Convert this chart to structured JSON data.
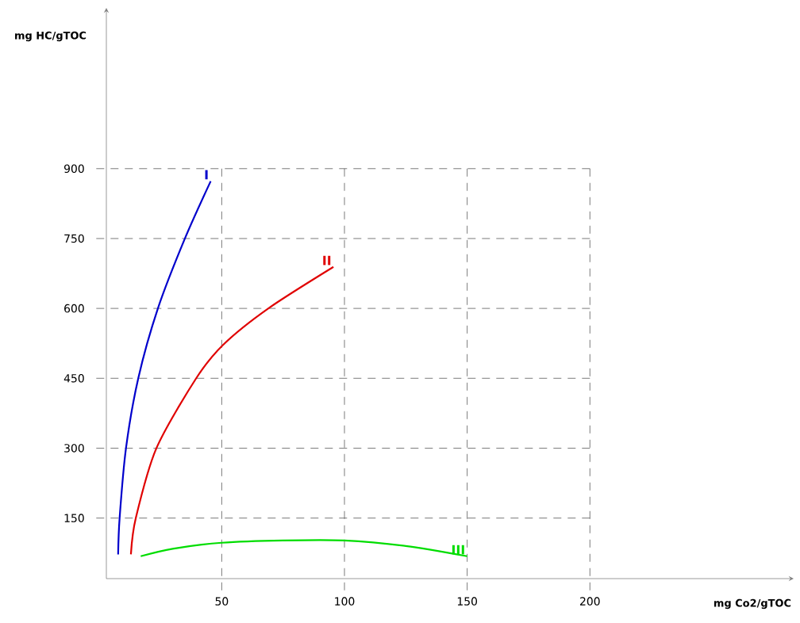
{
  "chart_data": {
    "type": "line",
    "xlabel": "mg Co2/gTOC",
    "ylabel": "mg HC/gTOC",
    "xlim": [
      3,
      283
    ],
    "ylim": [
      20,
      1245
    ],
    "xticks": [
      50,
      100,
      150,
      200
    ],
    "yticks": [
      150,
      300,
      450,
      600,
      750,
      900
    ],
    "grid": true,
    "marker": "none",
    "line_style": "solid",
    "series": [
      {
        "name": "I",
        "color": "#0000cc",
        "x": [
          7.8,
          8.4,
          11,
          16,
          24,
          35,
          45.5
        ],
        "values": [
          72,
          150,
          300,
          450,
          600,
          750,
          873
        ]
      },
      {
        "name": "II",
        "color": "#e00000",
        "x": [
          13,
          15,
          23.4,
          39.6,
          50.6,
          69,
          95.5
        ],
        "values": [
          72,
          150,
          300,
          450,
          522,
          600,
          689
        ]
      },
      {
        "name": "III",
        "color": "#00dd00",
        "x": [
          17,
          30,
          50,
          75,
          100,
          125,
          150
        ],
        "values": [
          68,
          84,
          97,
          102,
          102,
          90,
          68
        ]
      }
    ]
  }
}
